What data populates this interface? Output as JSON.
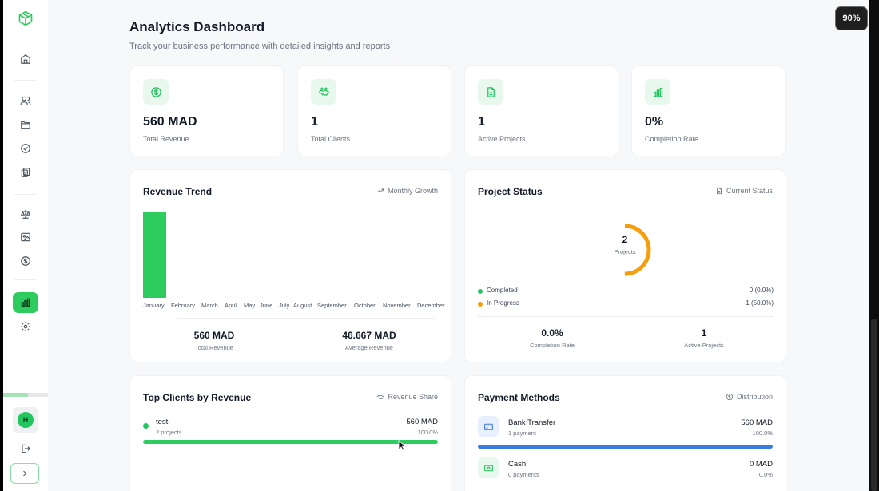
{
  "page": {
    "title": "Analytics Dashboard",
    "subtitle": "Track your business performance with detailed insights and reports"
  },
  "zoom": "90%",
  "sidebar": {
    "items": [
      {
        "name": "sidebar-logo",
        "icon": "cube-logo-icon"
      },
      {
        "name": "sidebar-item-home",
        "icon": "home-icon"
      },
      {
        "name": "sidebar-item-clients",
        "icon": "users-icon"
      },
      {
        "name": "sidebar-item-projects",
        "icon": "folder-icon"
      },
      {
        "name": "sidebar-item-tasks",
        "icon": "check-circle-icon"
      },
      {
        "name": "sidebar-item-documents",
        "icon": "copy-icon"
      },
      {
        "name": "sidebar-item-legal",
        "icon": "scale-icon"
      },
      {
        "name": "sidebar-item-media",
        "icon": "image-icon"
      },
      {
        "name": "sidebar-item-payments",
        "icon": "dollar-circle-icon"
      },
      {
        "name": "sidebar-item-analytics",
        "icon": "bar-chart-icon",
        "active": true
      },
      {
        "name": "sidebar-item-settings",
        "icon": "gear-icon"
      }
    ],
    "progress": 0.55,
    "avatar_initial": "H"
  },
  "stats": [
    {
      "value": "560 MAD",
      "label": "Total Revenue",
      "icon": "dollar-icon"
    },
    {
      "value": "1",
      "label": "Total Clients",
      "icon": "handshake-icon"
    },
    {
      "value": "1",
      "label": "Active Projects",
      "icon": "file-icon"
    },
    {
      "value": "0%",
      "label": "Completion Rate",
      "icon": "bar-chart-icon"
    }
  ],
  "revenue_trend": {
    "title": "Revenue Trend",
    "tag": "Monthly Growth",
    "summary": [
      {
        "value": "560 MAD",
        "label": "Total Revenue"
      },
      {
        "value": "46.667 MAD",
        "label": "Average Revenue"
      }
    ]
  },
  "chart_data": {
    "type": "bar",
    "categories": [
      "January",
      "February",
      "March",
      "April",
      "May",
      "June",
      "July",
      "August",
      "September",
      "October",
      "November",
      "December"
    ],
    "values": [
      560,
      0,
      0,
      0,
      0,
      0,
      0,
      0,
      0,
      0,
      0,
      0
    ],
    "title": "Revenue Trend",
    "xlabel": "",
    "ylabel": "",
    "ylim": [
      0,
      560
    ],
    "grid": false,
    "color": "#2ecc5e"
  },
  "project_status": {
    "title": "Project Status",
    "tag": "Current Status",
    "total": "2",
    "total_label": "Projects",
    "legend": [
      {
        "name": "Completed",
        "value": "0 (0.0%)",
        "color": "#22c55e",
        "fraction": 0
      },
      {
        "name": "In Progress",
        "value": "1 (50.0%)",
        "color": "#f59e0b",
        "fraction": 0.5
      }
    ],
    "summary": [
      {
        "value": "0.0%",
        "label": "Completion Rate"
      },
      {
        "value": "1",
        "label": "Active Projects"
      }
    ]
  },
  "top_clients": {
    "title": "Top Clients by Revenue",
    "tag": "Revenue Share",
    "clients": [
      {
        "name": "test",
        "projects": "2 projects",
        "amount": "560 MAD",
        "percent": "100.0%",
        "share": 1.0
      }
    ]
  },
  "payment_methods": {
    "title": "Payment Methods",
    "tag": "Distribution",
    "methods": [
      {
        "name": "Bank Transfer",
        "count": "1 payment",
        "amount": "560 MAD",
        "percent": "100.0%",
        "share": 1.0,
        "color": "#3b7be0",
        "icon": "credit-card-icon"
      },
      {
        "name": "Cash",
        "count": "0 payments",
        "amount": "0 MAD",
        "percent": "0.0%",
        "share": 0.0,
        "color": "#22c55e",
        "icon": "banknote-icon"
      }
    ]
  }
}
